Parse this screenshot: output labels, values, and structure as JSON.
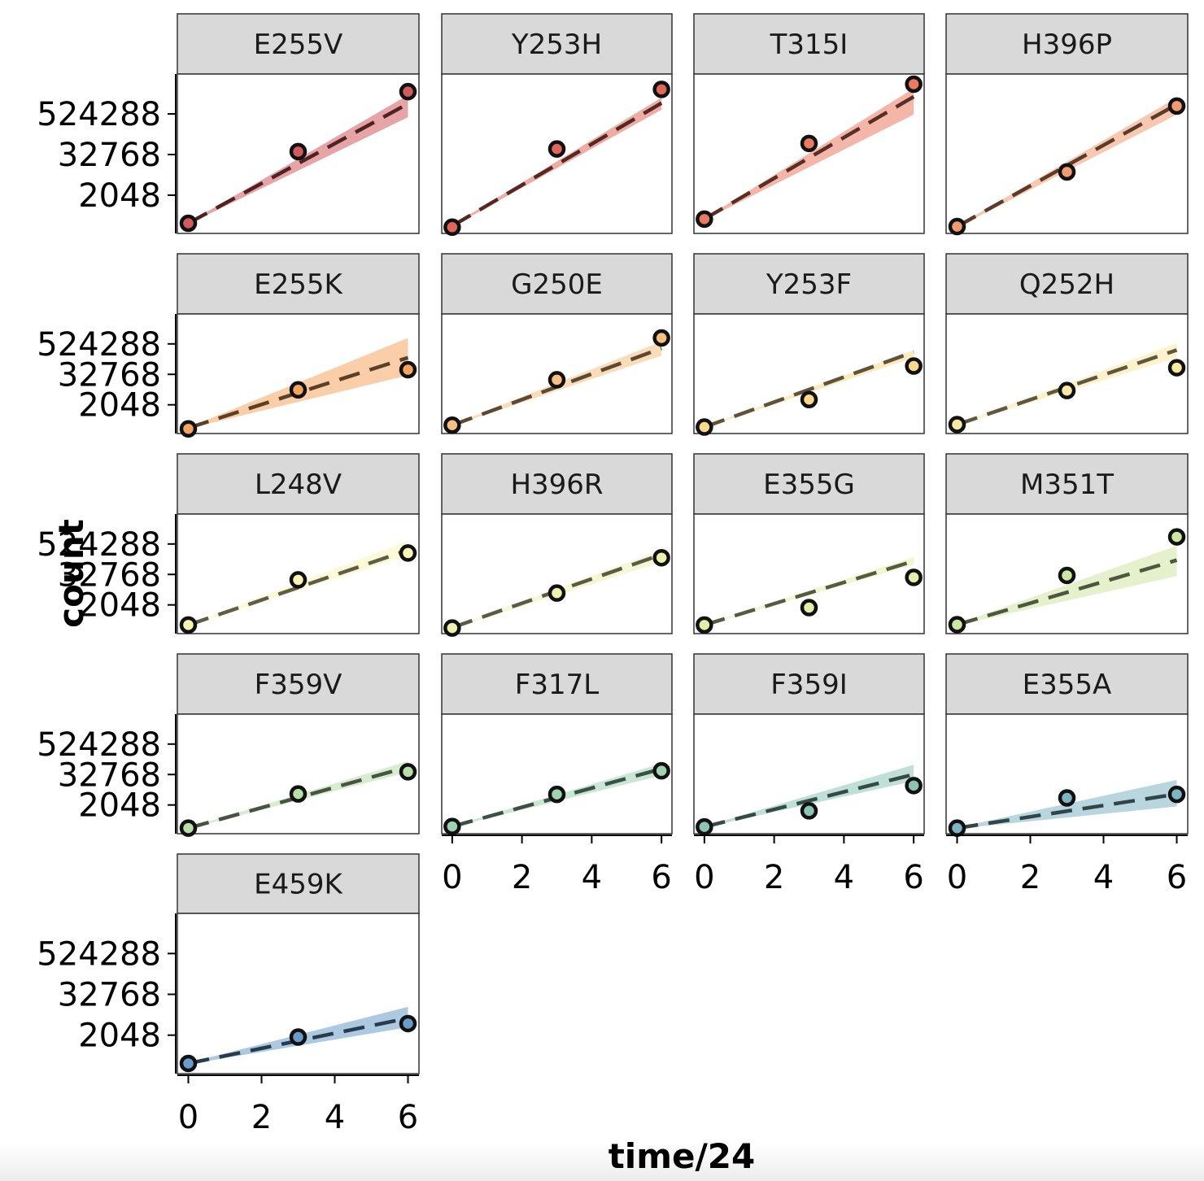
{
  "chart_data": {
    "type": "scatter",
    "xlabel": "time/24",
    "ylabel": "count",
    "x_ticks": [
      0,
      2,
      4,
      6
    ],
    "y_ticks": [
      2048,
      32768,
      524288
    ],
    "y_scale": "log2",
    "xlim": [
      -0.3,
      6.3
    ],
    "ylim": [
      150,
      8000000
    ],
    "facets": [
      {
        "label": "E255V",
        "color": "#d25a5f",
        "points": [
          {
            "x": 0,
            "y": 300
          },
          {
            "x": 3,
            "y": 40000
          },
          {
            "x": 6,
            "y": 2400000
          }
        ],
        "fit": {
          "y0": 300,
          "y6": 1050000,
          "lo6": 420000,
          "hi6": 1900000
        }
      },
      {
        "label": "Y253H",
        "color": "#e0685a",
        "points": [
          {
            "x": 0,
            "y": 230
          },
          {
            "x": 3,
            "y": 48000
          },
          {
            "x": 6,
            "y": 2800000
          }
        ],
        "fit": {
          "y0": 250,
          "y6": 1100000,
          "lo6": 700000,
          "hi6": 1600000
        }
      },
      {
        "label": "T315I",
        "color": "#ea7a62",
        "points": [
          {
            "x": 0,
            "y": 400
          },
          {
            "x": 3,
            "y": 70000
          },
          {
            "x": 6,
            "y": 4000000
          }
        ],
        "fit": {
          "y0": 400,
          "y6": 1700000,
          "lo6": 500000,
          "hi6": 3000000
        }
      },
      {
        "label": "H396P",
        "color": "#f29a70",
        "points": [
          {
            "x": 0,
            "y": 240
          },
          {
            "x": 3,
            "y": 10000
          },
          {
            "x": 6,
            "y": 900000
          }
        ],
        "fit": {
          "y0": 240,
          "y6": 1000000,
          "lo6": 500000,
          "hi6": 1600000
        }
      },
      {
        "label": "E255K",
        "color": "#f4a561",
        "points": [
          {
            "x": 0,
            "y": 230
          },
          {
            "x": 3,
            "y": 8000
          },
          {
            "x": 6,
            "y": 50000
          }
        ],
        "fit": {
          "y0": 250,
          "y6": 150000,
          "lo6": 30000,
          "hi6": 900000
        }
      },
      {
        "label": "G250E",
        "color": "#f6c080",
        "points": [
          {
            "x": 0,
            "y": 320
          },
          {
            "x": 3,
            "y": 20000
          },
          {
            "x": 6,
            "y": 900000
          }
        ],
        "fit": {
          "y0": 320,
          "y6": 350000,
          "lo6": 180000,
          "hi6": 650000
        }
      },
      {
        "label": "Y253F",
        "color": "#f9d98e",
        "points": [
          {
            "x": 0,
            "y": 270
          },
          {
            "x": 3,
            "y": 3300
          },
          {
            "x": 6,
            "y": 70000
          }
        ],
        "fit": {
          "y0": 270,
          "y6": 250000,
          "lo6": 150000,
          "hi6": 300000
        }
      },
      {
        "label": "Q252H",
        "color": "#fbe8a3",
        "points": [
          {
            "x": 0,
            "y": 340
          },
          {
            "x": 3,
            "y": 7500
          },
          {
            "x": 6,
            "y": 60000
          }
        ],
        "fit": {
          "y0": 340,
          "y6": 300000,
          "lo6": 150000,
          "hi6": 550000
        }
      },
      {
        "label": "L248V",
        "color": "#fbf6b8",
        "points": [
          {
            "x": 0,
            "y": 330
          },
          {
            "x": 3,
            "y": 20000
          },
          {
            "x": 6,
            "y": 230000
          }
        ],
        "fit": {
          "y0": 330,
          "y6": 300000,
          "lo6": 180000,
          "hi6": 700000
        }
      },
      {
        "label": "H396R",
        "color": "#eef0b0",
        "points": [
          {
            "x": 0,
            "y": 250
          },
          {
            "x": 3,
            "y": 6000
          },
          {
            "x": 6,
            "y": 150000
          }
        ],
        "fit": {
          "y0": 260,
          "y6": 200000,
          "lo6": 100000,
          "hi6": 300000
        }
      },
      {
        "label": "E355G",
        "color": "#e3eea9",
        "points": [
          {
            "x": 0,
            "y": 330
          },
          {
            "x": 3,
            "y": 1600
          },
          {
            "x": 6,
            "y": 25000
          }
        ],
        "fit": {
          "y0": 330,
          "y6": 110000,
          "lo6": 80000,
          "hi6": 160000
        }
      },
      {
        "label": "M351T",
        "color": "#cde6a3",
        "points": [
          {
            "x": 0,
            "y": 340
          },
          {
            "x": 3,
            "y": 30000
          },
          {
            "x": 6,
            "y": 1000000
          }
        ],
        "fit": {
          "y0": 340,
          "y6": 120000,
          "lo6": 28000,
          "hi6": 450000
        }
      },
      {
        "label": "F359V",
        "color": "#b8deaa",
        "points": [
          {
            "x": 0,
            "y": 250
          },
          {
            "x": 3,
            "y": 5600
          },
          {
            "x": 6,
            "y": 42000
          }
        ],
        "fit": {
          "y0": 250,
          "y6": 65000,
          "lo6": 40000,
          "hi6": 110000
        }
      },
      {
        "label": "F317L",
        "color": "#9fd2b0",
        "points": [
          {
            "x": 0,
            "y": 290
          },
          {
            "x": 3,
            "y": 5400
          },
          {
            "x": 6,
            "y": 46000
          }
        ],
        "fit": {
          "y0": 290,
          "y6": 55000,
          "lo6": 30000,
          "hi6": 90000
        }
      },
      {
        "label": "F359I",
        "color": "#8cc4b6",
        "points": [
          {
            "x": 0,
            "y": 280
          },
          {
            "x": 3,
            "y": 1200
          },
          {
            "x": 6,
            "y": 12000
          }
        ],
        "fit": {
          "y0": 280,
          "y6": 33000,
          "lo6": 18000,
          "hi6": 80000
        }
      },
      {
        "label": "E355A",
        "color": "#7fb5c2",
        "points": [
          {
            "x": 0,
            "y": 250
          },
          {
            "x": 3,
            "y": 3900
          },
          {
            "x": 6,
            "y": 5400
          }
        ],
        "fit": {
          "y0": 250,
          "y6": 5500,
          "lo6": 1800,
          "hi6": 20000
        }
      },
      {
        "label": "E459K",
        "color": "#6a9cc9",
        "points": [
          {
            "x": 0,
            "y": 300
          },
          {
            "x": 3,
            "y": 1800
          },
          {
            "x": 6,
            "y": 4500
          }
        ],
        "fit": {
          "y0": 300,
          "y6": 6500,
          "lo6": 3500,
          "hi6": 14000
        }
      }
    ]
  }
}
